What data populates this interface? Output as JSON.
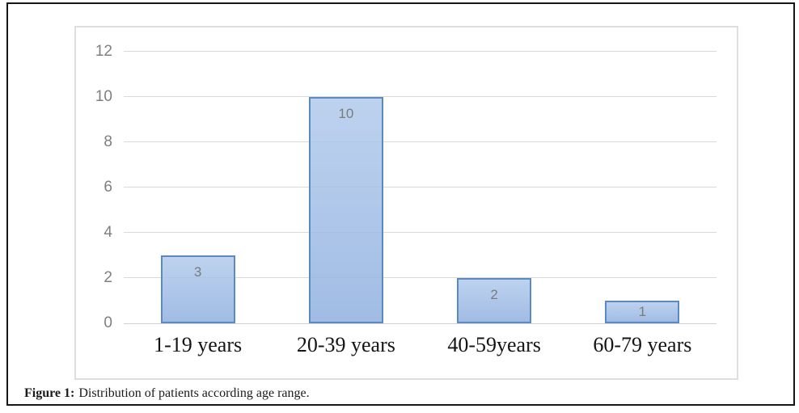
{
  "figure": {
    "caption": {
      "label": "Figure 1:",
      "text": "Distribution of patients according age range."
    }
  },
  "chart_data": {
    "type": "bar",
    "title": "",
    "xlabel": "",
    "ylabel": "",
    "categories": [
      "1-19 years",
      "20-39 years",
      "40-59years",
      "60-79 years"
    ],
    "values": [
      3,
      10,
      2,
      1
    ],
    "data_labels": [
      "3",
      "10",
      "2",
      "1"
    ],
    "y_ticks": [
      0,
      2,
      4,
      6,
      8,
      10,
      12
    ],
    "ylim": [
      0,
      12
    ],
    "grid": true,
    "legend": false,
    "data_label_position": "inside-end",
    "colors": {
      "bar_fill_top": "rgba(178,202,236,0.85)",
      "bar_fill_bottom": "rgba(140,173,222,0.82)",
      "bar_border": "#5b8ac2",
      "gridline": "#d9d9d9",
      "axis_line": "#d0d0d0",
      "tick_label": "#7f7f7f",
      "data_label": "#7b7b7b",
      "category_label": "#141414",
      "chart_border": "#dedede",
      "frame_border": "#161616"
    }
  }
}
